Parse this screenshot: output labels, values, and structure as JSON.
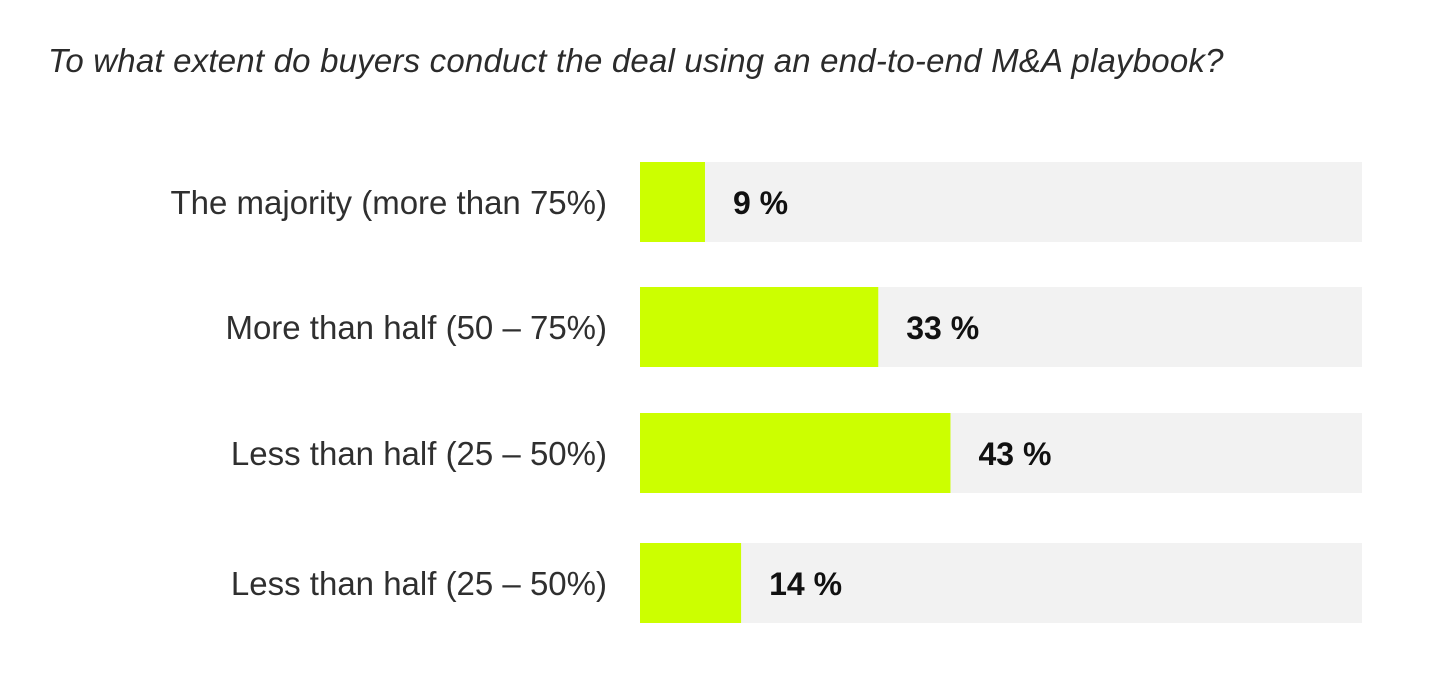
{
  "chart_data": {
    "type": "bar",
    "orientation": "horizontal",
    "title": "To what extent do buyers conduct the deal using an end-to-end M&A playbook?",
    "categories": [
      "The majority (more than 75%)",
      "More than half (50 – 75%)",
      "Less than half (25 – 50%)",
      "Less than half (25 – 50%)"
    ],
    "values": [
      9,
      33,
      43,
      14
    ],
    "value_labels": [
      "9 %",
      "33 %",
      "43 %",
      "14 %"
    ],
    "xlim": [
      0,
      100
    ],
    "grid": false,
    "legend": "none",
    "colors": {
      "bar": "#ccff00",
      "track": "#f2f2f2"
    }
  }
}
